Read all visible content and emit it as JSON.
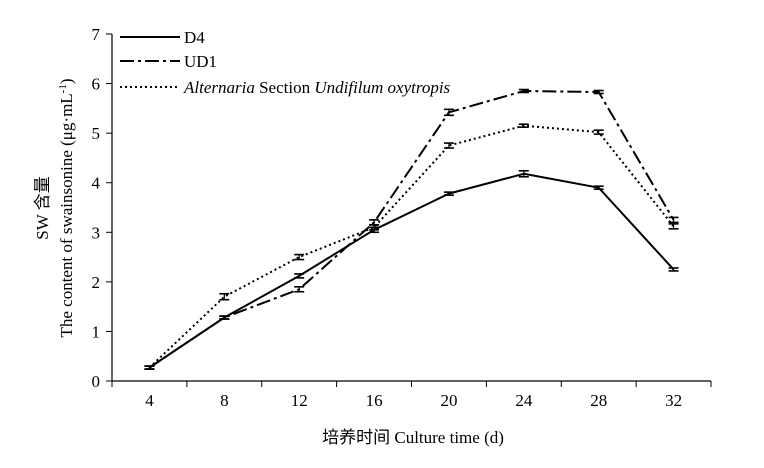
{
  "chart_data": {
    "type": "line",
    "xlabel": "培养时间 Culture time (d)",
    "ylabel_zh": "SW 含量",
    "ylabel_en_prefix": "The content of swainsonine (μg·mL",
    "ylabel_en_sup": "-1",
    "ylabel_en_suffix": ")",
    "x": [
      4,
      8,
      12,
      16,
      20,
      24,
      28,
      32
    ],
    "xlim": [
      2,
      34
    ],
    "ylim": [
      0,
      7
    ],
    "yticks": [
      0,
      1,
      2,
      3,
      4,
      5,
      6,
      7
    ],
    "grid": false,
    "legend_position": "top-left",
    "series": [
      {
        "name": "D4",
        "style": "solid",
        "values": [
          0.27,
          1.28,
          2.12,
          3.05,
          3.78,
          4.18,
          3.9,
          2.25
        ],
        "errors": [
          0.03,
          0.03,
          0.04,
          0.05,
          0.03,
          0.06,
          0.03,
          0.03
        ]
      },
      {
        "name": "UD1",
        "style": "dashdot",
        "values": [
          0.27,
          1.28,
          1.85,
          3.2,
          5.42,
          5.85,
          5.83,
          3.25
        ],
        "errors": [
          0.03,
          0.03,
          0.05,
          0.05,
          0.06,
          0.03,
          0.03,
          0.05
        ]
      },
      {
        "name_italic_1": "Alternaria",
        "name_roman_1": " Section ",
        "name_italic_2": "Undifilum oxytropis",
        "style": "dotted",
        "values": [
          0.27,
          1.7,
          2.5,
          3.1,
          4.75,
          5.15,
          5.02,
          3.12
        ],
        "errors": [
          0.03,
          0.06,
          0.05,
          0.05,
          0.05,
          0.03,
          0.04,
          0.05
        ]
      }
    ],
    "colors": {
      "line": "#000000",
      "background": "#ffffff"
    }
  }
}
